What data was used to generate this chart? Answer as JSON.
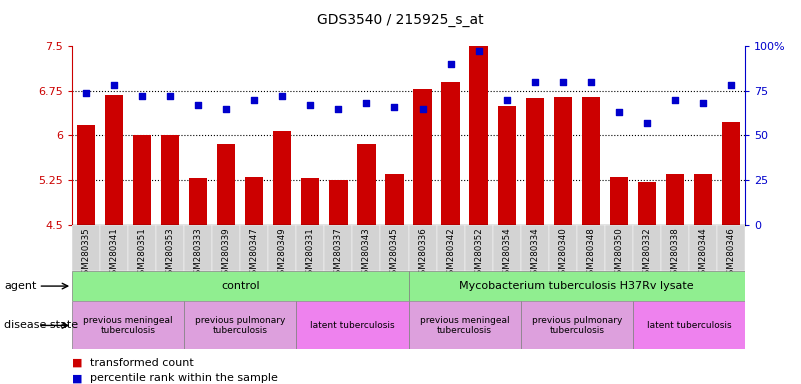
{
  "title": "GDS3540 / 215925_s_at",
  "samples": [
    "GSM280335",
    "GSM280341",
    "GSM280351",
    "GSM280353",
    "GSM280333",
    "GSM280339",
    "GSM280347",
    "GSM280349",
    "GSM280331",
    "GSM280337",
    "GSM280343",
    "GSM280345",
    "GSM280336",
    "GSM280342",
    "GSM280352",
    "GSM280354",
    "GSM280334",
    "GSM280340",
    "GSM280348",
    "GSM280350",
    "GSM280332",
    "GSM280338",
    "GSM280344",
    "GSM280346"
  ],
  "bar_values": [
    6.18,
    6.68,
    6.0,
    6.0,
    5.28,
    5.85,
    5.3,
    6.08,
    5.28,
    5.25,
    5.85,
    5.35,
    6.78,
    6.9,
    7.5,
    6.5,
    6.62,
    6.65,
    6.65,
    5.3,
    5.22,
    5.35,
    5.35,
    6.22
  ],
  "percentile_values": [
    74,
    78,
    72,
    72,
    67,
    65,
    70,
    72,
    67,
    65,
    68,
    66,
    65,
    90,
    97,
    70,
    80,
    80,
    80,
    63,
    57,
    70,
    68,
    78
  ],
  "bar_color": "#CC0000",
  "dot_color": "#0000CC",
  "ylim_left": [
    4.5,
    7.5
  ],
  "ylim_right": [
    0,
    100
  ],
  "yticks_left": [
    4.5,
    5.25,
    6.0,
    6.75,
    7.5
  ],
  "yticks_right": [
    0,
    25,
    50,
    75,
    100
  ],
  "ytick_labels_left": [
    "4.5",
    "5.25",
    "6",
    "6.75",
    "7.5"
  ],
  "ytick_labels_right": [
    "0",
    "25",
    "50",
    "75",
    "100%"
  ],
  "hlines": [
    5.25,
    6.0,
    6.75
  ],
  "agent_groups": [
    {
      "label": "control",
      "start": 0,
      "end": 12,
      "color": "#90EE90"
    },
    {
      "label": "Mycobacterium tuberculosis H37Rv lysate",
      "start": 12,
      "end": 24,
      "color": "#90EE90"
    }
  ],
  "disease_groups": [
    {
      "label": "previous meningeal\ntuberculosis",
      "start": 0,
      "end": 4,
      "color": "#DDA0DD"
    },
    {
      "label": "previous pulmonary\ntuberculosis",
      "start": 4,
      "end": 8,
      "color": "#DDA0DD"
    },
    {
      "label": "latent tuberculosis",
      "start": 8,
      "end": 12,
      "color": "#EE82EE"
    },
    {
      "label": "previous meningeal\ntuberculosis",
      "start": 12,
      "end": 16,
      "color": "#DDA0DD"
    },
    {
      "label": "previous pulmonary\ntuberculosis",
      "start": 16,
      "end": 20,
      "color": "#DDA0DD"
    },
    {
      "label": "latent tuberculosis",
      "start": 20,
      "end": 24,
      "color": "#EE82EE"
    }
  ],
  "legend_items": [
    {
      "label": "transformed count",
      "color": "#CC0000"
    },
    {
      "label": "percentile rank within the sample",
      "color": "#0000CC"
    }
  ],
  "left_axis_color": "#CC0000",
  "right_axis_color": "#0000CC",
  "agent_label": "agent",
  "disease_label": "disease state",
  "tick_bg_color": "#D3D3D3"
}
